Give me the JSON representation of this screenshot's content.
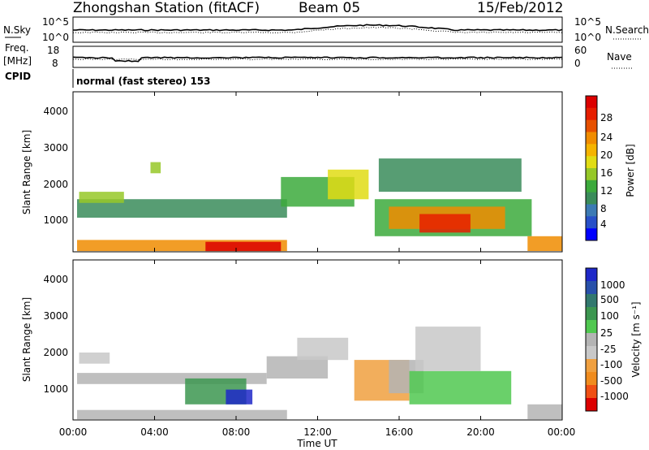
{
  "header": {
    "station": "Zhongshan Station (fitACF)",
    "beam": "Beam 05",
    "date": "15/Feb/2012"
  },
  "noise_panel": {
    "left_label": "N.Sky",
    "left_ticks": [
      "10^5",
      "10^0"
    ],
    "right_label": "N.Search",
    "right_ticks": [
      "10^5",
      "10^0"
    ]
  },
  "freq_panel": {
    "left_label_1": "Freq.",
    "left_label_2": "[MHz]",
    "left_ticks": [
      "18",
      "8"
    ],
    "right_label": "Nave",
    "right_ticks": [
      "60",
      "0"
    ]
  },
  "cpid": {
    "label": "CPID",
    "value": "normal (fast stereo) 153"
  },
  "power_scale": {
    "label": "Power [dB]",
    "ticks": [
      "28",
      "24",
      "20",
      "16",
      "12",
      "8",
      "4"
    ],
    "colors": [
      "#0000ff",
      "#2850c8",
      "#3c7ab4",
      "#3a8c5a",
      "#3caa3c",
      "#96c828",
      "#e1dc14",
      "#f5b400",
      "#f08c00",
      "#e65000",
      "#e61e00",
      "#dc0000"
    ]
  },
  "velocity_scale": {
    "label": "Velocity [m s⁻¹]",
    "ticks": [
      "1000",
      "500",
      "100",
      "25",
      "-25",
      "-100",
      "-500",
      "-1000"
    ],
    "colors": [
      "#dc0000",
      "#f05014",
      "#f08c1e",
      "#f0a040",
      "#c8c8c8",
      "#b4b4b4",
      "#50c850",
      "#3c9650",
      "#32786e",
      "#2850aa",
      "#1e28c8"
    ]
  },
  "x_axis": {
    "label": "Time UT",
    "ticks": [
      "00:00",
      "04:00",
      "08:00",
      "12:00",
      "16:00",
      "20:00",
      "00:00"
    ]
  },
  "y_axis": {
    "label": "Slant Range [km]",
    "ticks": [
      "1000",
      "2000",
      "3000",
      "4000"
    ]
  },
  "chart_data": [
    {
      "type": "heatmap",
      "quantity": "Power",
      "unit": "dB",
      "xlabel": "Time UT",
      "ylabel": "Slant Range [km]",
      "x_range_hours": [
        0,
        24
      ],
      "y_range_km": [
        180,
        4500
      ],
      "colorbar_range": [
        0,
        30
      ],
      "regions": [
        {
          "t0": 0.2,
          "t1": 10.5,
          "r0": 200,
          "r1": 500,
          "level": 22
        },
        {
          "t0": 6.5,
          "t1": 10.2,
          "r0": 200,
          "r1": 450,
          "level": 28
        },
        {
          "t0": 0.2,
          "t1": 10.5,
          "r0": 1100,
          "r1": 1600,
          "level": 8
        },
        {
          "t0": 0.3,
          "t1": 2.5,
          "r0": 1500,
          "r1": 1800,
          "level": 14
        },
        {
          "t0": 3.8,
          "t1": 4.3,
          "r0": 2300,
          "r1": 2600,
          "level": 14
        },
        {
          "t0": 10.2,
          "t1": 13.8,
          "r0": 1400,
          "r1": 2200,
          "level": 10
        },
        {
          "t0": 12.5,
          "t1": 14.5,
          "r0": 1600,
          "r1": 2400,
          "level": 16
        },
        {
          "t0": 14.8,
          "t1": 22.5,
          "r0": 600,
          "r1": 1600,
          "level": 10
        },
        {
          "t0": 15.5,
          "t1": 21.2,
          "r0": 800,
          "r1": 1400,
          "level": 20
        },
        {
          "t0": 17.0,
          "t1": 19.5,
          "r0": 700,
          "r1": 1200,
          "level": 27
        },
        {
          "t0": 22.3,
          "t1": 24.0,
          "r0": 200,
          "r1": 600,
          "level": 21
        },
        {
          "t0": 15.0,
          "t1": 22.0,
          "r0": 1800,
          "r1": 2700,
          "level": 8
        }
      ]
    },
    {
      "type": "heatmap",
      "quantity": "Velocity",
      "unit": "m s^-1",
      "xlabel": "Time UT",
      "ylabel": "Slant Range [km]",
      "x_range_hours": [
        0,
        24
      ],
      "y_range_km": [
        180,
        4500
      ],
      "colorbar_range": [
        -1000,
        1000
      ],
      "regions": [
        {
          "t0": 0.2,
          "t1": 10.5,
          "r0": 200,
          "r1": 450,
          "level": 60
        },
        {
          "t0": 0.3,
          "t1": 1.8,
          "r0": 1700,
          "r1": 2000,
          "level": -150
        },
        {
          "t0": 0.2,
          "t1": 9.5,
          "r0": 1150,
          "r1": 1450,
          "level": 0
        },
        {
          "t0": 5.5,
          "t1": 8.5,
          "r0": 600,
          "r1": 1300,
          "level": 400
        },
        {
          "t0": 7.5,
          "t1": 8.8,
          "r0": 600,
          "r1": 1000,
          "level": 900
        },
        {
          "t0": 9.5,
          "t1": 12.5,
          "r0": 1300,
          "r1": 1900,
          "level": 0
        },
        {
          "t0": 11.0,
          "t1": 13.5,
          "r0": 1800,
          "r1": 2400,
          "level": -150
        },
        {
          "t0": 13.8,
          "t1": 16.5,
          "r0": 700,
          "r1": 1800,
          "level": -400
        },
        {
          "t0": 15.5,
          "t1": 17.2,
          "r0": 900,
          "r1": 1800,
          "level": 0
        },
        {
          "t0": 16.5,
          "t1": 21.5,
          "r0": 600,
          "r1": 1500,
          "level": 150
        },
        {
          "t0": 16.8,
          "t1": 20.0,
          "r0": 1500,
          "r1": 2700,
          "level": -150
        },
        {
          "t0": 22.3,
          "t1": 24.0,
          "r0": 200,
          "r1": 600,
          "level": 60
        }
      ]
    }
  ]
}
